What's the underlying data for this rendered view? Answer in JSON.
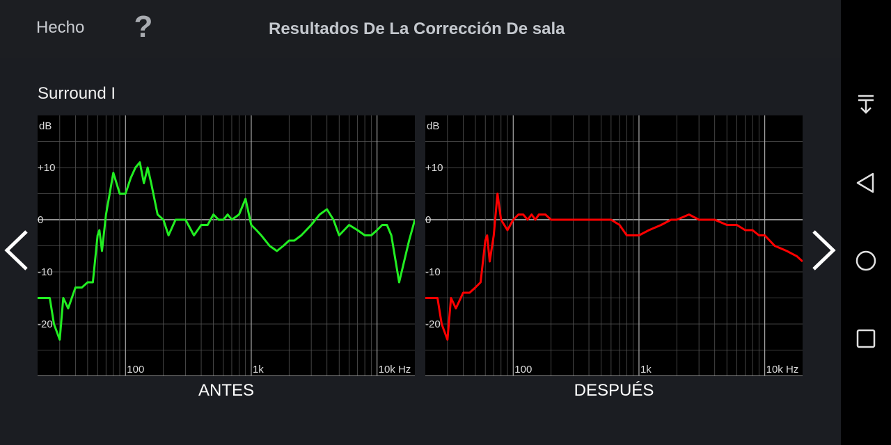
{
  "header": {
    "done_label": "Hecho",
    "help_label": "?",
    "title": "Resultados De La Corrección De sala"
  },
  "section_title": "Surround I",
  "axis": {
    "db_unit": "dB",
    "y_ticks": [
      "+10",
      "0",
      "-10",
      "-20"
    ],
    "x_ticks": [
      "100",
      "1k",
      "10k Hz"
    ]
  },
  "chart_data": [
    {
      "type": "line",
      "label": "ANTES",
      "color": "#22ee22",
      "x_scale": "log",
      "xlim": [
        20,
        20000
      ],
      "ylim": [
        -30,
        20
      ],
      "x": [
        20,
        25,
        27,
        30,
        32,
        35,
        40,
        45,
        50,
        55,
        60,
        62,
        65,
        70,
        80,
        90,
        100,
        110,
        120,
        130,
        140,
        150,
        160,
        180,
        200,
        220,
        250,
        280,
        300,
        350,
        400,
        450,
        500,
        550,
        600,
        650,
        700,
        800,
        900,
        1000,
        1100,
        1200,
        1400,
        1600,
        1800,
        2000,
        2200,
        2500,
        3000,
        3500,
        4000,
        4500,
        5000,
        6000,
        7000,
        8000,
        9000,
        10000,
        11000,
        12000,
        13000,
        15000,
        18000,
        20000
      ],
      "y": [
        -15,
        -15,
        -20,
        -23,
        -15,
        -17,
        -13,
        -13,
        -12,
        -12,
        -3,
        -2,
        -6,
        1,
        9,
        5,
        5,
        8,
        10,
        11,
        7,
        10,
        7,
        1,
        0,
        -3,
        0,
        0,
        0,
        -3,
        -1,
        -1,
        1,
        0,
        0,
        1,
        0,
        1,
        4,
        -1,
        -2,
        -3,
        -5,
        -6,
        -5,
        -4,
        -4,
        -3,
        -1,
        1,
        2,
        0,
        -3,
        -1,
        -2,
        -3,
        -3,
        -2,
        -1,
        -1,
        -3,
        -12,
        -4,
        0
      ]
    },
    {
      "type": "line",
      "label": "DESPUÉS",
      "color": "#ff0000",
      "x_scale": "log",
      "xlim": [
        20,
        20000
      ],
      "ylim": [
        -30,
        20
      ],
      "x": [
        20,
        25,
        27,
        30,
        32,
        35,
        40,
        45,
        50,
        55,
        60,
        62,
        65,
        70,
        75,
        80,
        90,
        100,
        110,
        120,
        130,
        140,
        150,
        160,
        180,
        200,
        250,
        300,
        400,
        500,
        600,
        700,
        800,
        1000,
        1200,
        1500,
        1800,
        2000,
        2500,
        3000,
        3500,
        4000,
        5000,
        6000,
        7000,
        8000,
        9000,
        10000,
        12000,
        15000,
        18000,
        20000
      ],
      "y": [
        -15,
        -15,
        -20,
        -23,
        -15,
        -17,
        -14,
        -14,
        -13,
        -12,
        -4,
        -3,
        -8,
        -3,
        5,
        0,
        -2,
        0,
        1,
        1,
        0,
        1,
        0,
        1,
        1,
        0,
        0,
        0,
        0,
        0,
        0,
        -1,
        -3,
        -3,
        -2,
        -1,
        0,
        0,
        1,
        0,
        0,
        0,
        -1,
        -1,
        -2,
        -2,
        -3,
        -3,
        -5,
        -6,
        -7,
        -8
      ]
    }
  ],
  "nav": {
    "icons": [
      "notification-pull-icon",
      "back-icon",
      "home-icon",
      "recents-icon"
    ]
  }
}
